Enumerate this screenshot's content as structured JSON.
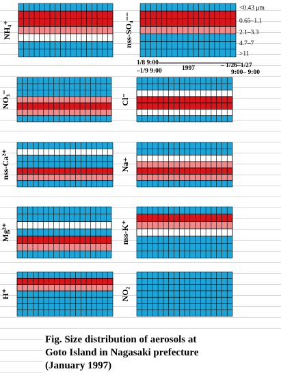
{
  "chart_data": [
    {
      "type": "heatmap",
      "label": "NH4+",
      "ion": "NH₄⁺",
      "levels": [
        0.1,
        0.8,
        0.9,
        0.6,
        0.3,
        0.1,
        0.05
      ]
    },
    {
      "type": "heatmap",
      "label": "nss-SO4--",
      "ion": "nss-SO₄⁻⁻",
      "levels": [
        0.1,
        0.9,
        0.9,
        0.5,
        0.2,
        0.1,
        0.05
      ]
    },
    {
      "type": "heatmap",
      "label": "NO3-",
      "ion": "NO₃⁻",
      "levels": [
        0.05,
        0.1,
        0.2,
        0.6,
        0.9,
        0.5,
        0.1
      ]
    },
    {
      "type": "heatmap",
      "label": "Cl-",
      "ion": "Cl⁻",
      "levels": [
        0.05,
        0.1,
        0.3,
        0.8,
        0.9,
        0.4,
        0.1
      ]
    },
    {
      "type": "heatmap",
      "label": "nss-Ca2+",
      "ion": "nss-Ca²⁺",
      "levels": [
        0.0,
        0.3,
        0.1,
        0.2,
        0.9,
        0.6,
        0.1
      ]
    },
    {
      "type": "heatmap",
      "label": "Na+",
      "ion": "Na+",
      "levels": [
        0.05,
        0.1,
        0.3,
        0.7,
        0.9,
        0.5,
        0.1
      ]
    },
    {
      "type": "heatmap",
      "label": "Mg2+",
      "ion": "Mg²⁺",
      "levels": [
        0.1,
        0.2,
        0.4,
        0.1,
        0.8,
        0.6,
        0.1
      ]
    },
    {
      "type": "heatmap",
      "label": "nss-K+",
      "ion": "nss-K⁺",
      "levels": [
        0.1,
        0.8,
        0.7,
        0.3,
        0.1,
        0.05,
        0.0
      ]
    },
    {
      "type": "heatmap",
      "label": "H+",
      "ion": "H⁺",
      "levels": [
        0.1,
        0.9,
        0.5,
        0.2,
        0.1,
        0.05,
        0.0
      ]
    },
    {
      "type": "heatmap",
      "label": "NO2",
      "ion": "NO₂",
      "levels": [
        0.1,
        0.05,
        0.05,
        0.1,
        0.05,
        0.05,
        0.05
      ]
    }
  ],
  "legend": {
    "size_classes": [
      "<0.43 μm",
      "0.65–1.1",
      "2.1–3.3",
      "4.7–7",
      ">11"
    ]
  },
  "time_axis": {
    "start_top": "1/8 9:00",
    "start_bottom": "–1/9 9:00",
    "year": "1997",
    "end_top": "– 1/26–1/27",
    "end_bottom": "9:00– 9:00"
  },
  "caption": {
    "line1": "Fig.  Size distribution of aerosols at",
    "line2": "Goto Island in Nagasaki prefecture",
    "line3": "(January 1997)"
  },
  "colors": {
    "background": "#1aa6d8",
    "high": "#d8161b",
    "mid": "#f08a8a",
    "clean": "#ffffff"
  }
}
